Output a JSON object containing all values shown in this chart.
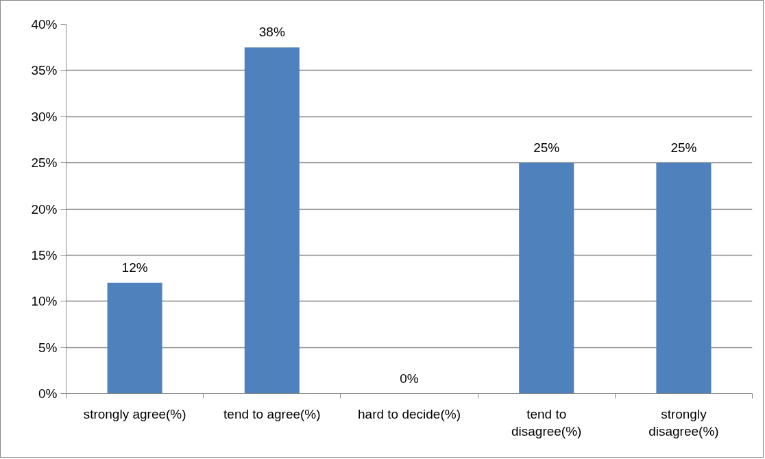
{
  "chart_data": {
    "type": "bar",
    "categories": [
      "strongly agree(%)",
      "tend to agree(%)",
      "hard to decide(%)",
      "tend to disagree(%)",
      "strongly disagree(%)"
    ],
    "values": [
      12,
      37.5,
      0,
      25,
      25
    ],
    "value_labels": [
      "12%",
      "38%",
      "0%",
      "25%",
      "25%"
    ],
    "color": "#4f81bd",
    "ylim": [
      0,
      40
    ],
    "yticks": [
      {
        "value": 0,
        "label": "0%"
      },
      {
        "value": 5,
        "label": "5%"
      },
      {
        "value": 10,
        "label": "10%"
      },
      {
        "value": 15,
        "label": "15%"
      },
      {
        "value": 20,
        "label": "20%"
      },
      {
        "value": 25,
        "label": "25%"
      },
      {
        "value": 30,
        "label": "30%"
      },
      {
        "value": 35,
        "label": "35%"
      },
      {
        "value": 40,
        "label": "40%"
      }
    ],
    "grid": "y"
  }
}
